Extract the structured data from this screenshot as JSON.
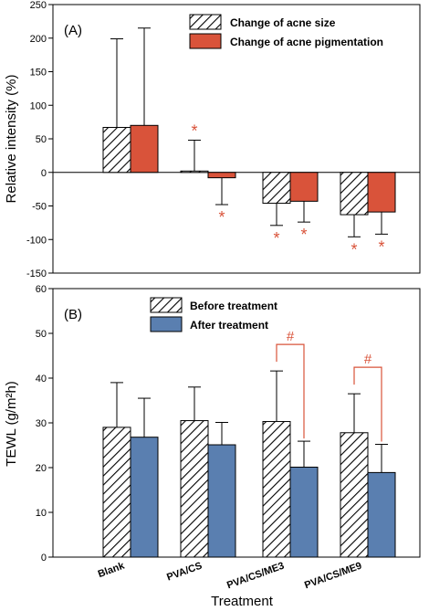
{
  "chart_data": [
    {
      "type": "bar",
      "panel_label": "(A)",
      "categories": [
        "Blank",
        "PVA/CS",
        "PVA/CS/ME3",
        "PVA/CS/ME9"
      ],
      "series": [
        {
          "name": "Change of acne size",
          "pattern": "hatch",
          "color": "#ffffff",
          "values": [
            67,
            2,
            -46,
            -63
          ],
          "error": [
            132,
            46,
            33,
            33
          ],
          "markers": [
            "",
            "*",
            "*",
            "*"
          ]
        },
        {
          "name": "Change of acne pigmentation",
          "pattern": "solid",
          "color": "#d9533a",
          "values": [
            70,
            -8,
            -43,
            -59
          ],
          "error": [
            145,
            40,
            31,
            33
          ],
          "markers": [
            "",
            "*",
            "*",
            "*"
          ]
        }
      ],
      "ylabel": "Relative intensity (%)",
      "ylim": [
        -150,
        250
      ],
      "yticks": [
        -150,
        -100,
        -50,
        0,
        50,
        100,
        150,
        200,
        250
      ],
      "legend": "top-right",
      "grid": false
    },
    {
      "type": "bar",
      "panel_label": "(B)",
      "categories": [
        "Blank",
        "PVA/CS",
        "PVA/CS/ME3",
        "PVA/CS/ME9"
      ],
      "series": [
        {
          "name": "Before treatment",
          "pattern": "hatch",
          "color": "#ffffff",
          "values": [
            29,
            30.5,
            30.3,
            27.8
          ],
          "error": [
            10,
            7.5,
            11.3,
            8.7
          ]
        },
        {
          "name": "After treatment",
          "pattern": "solid",
          "color": "#5a7fb0",
          "values": [
            26.8,
            25.1,
            20.1,
            18.9
          ],
          "error": [
            8.7,
            5,
            5.8,
            6.3
          ]
        }
      ],
      "significance": [
        {
          "category": "PVA/CS/ME3",
          "marker": "#"
        },
        {
          "category": "PVA/CS/ME9",
          "marker": "#"
        }
      ],
      "ylabel": "TEWL (g/m²h)",
      "xlabel": "Treatment",
      "ylim": [
        0,
        60
      ],
      "yticks": [
        0,
        10,
        20,
        30,
        40,
        50,
        60
      ],
      "legend": "top-left",
      "grid": false
    }
  ],
  "colors": {
    "significance": "#d9533a",
    "axis": "#000000"
  }
}
